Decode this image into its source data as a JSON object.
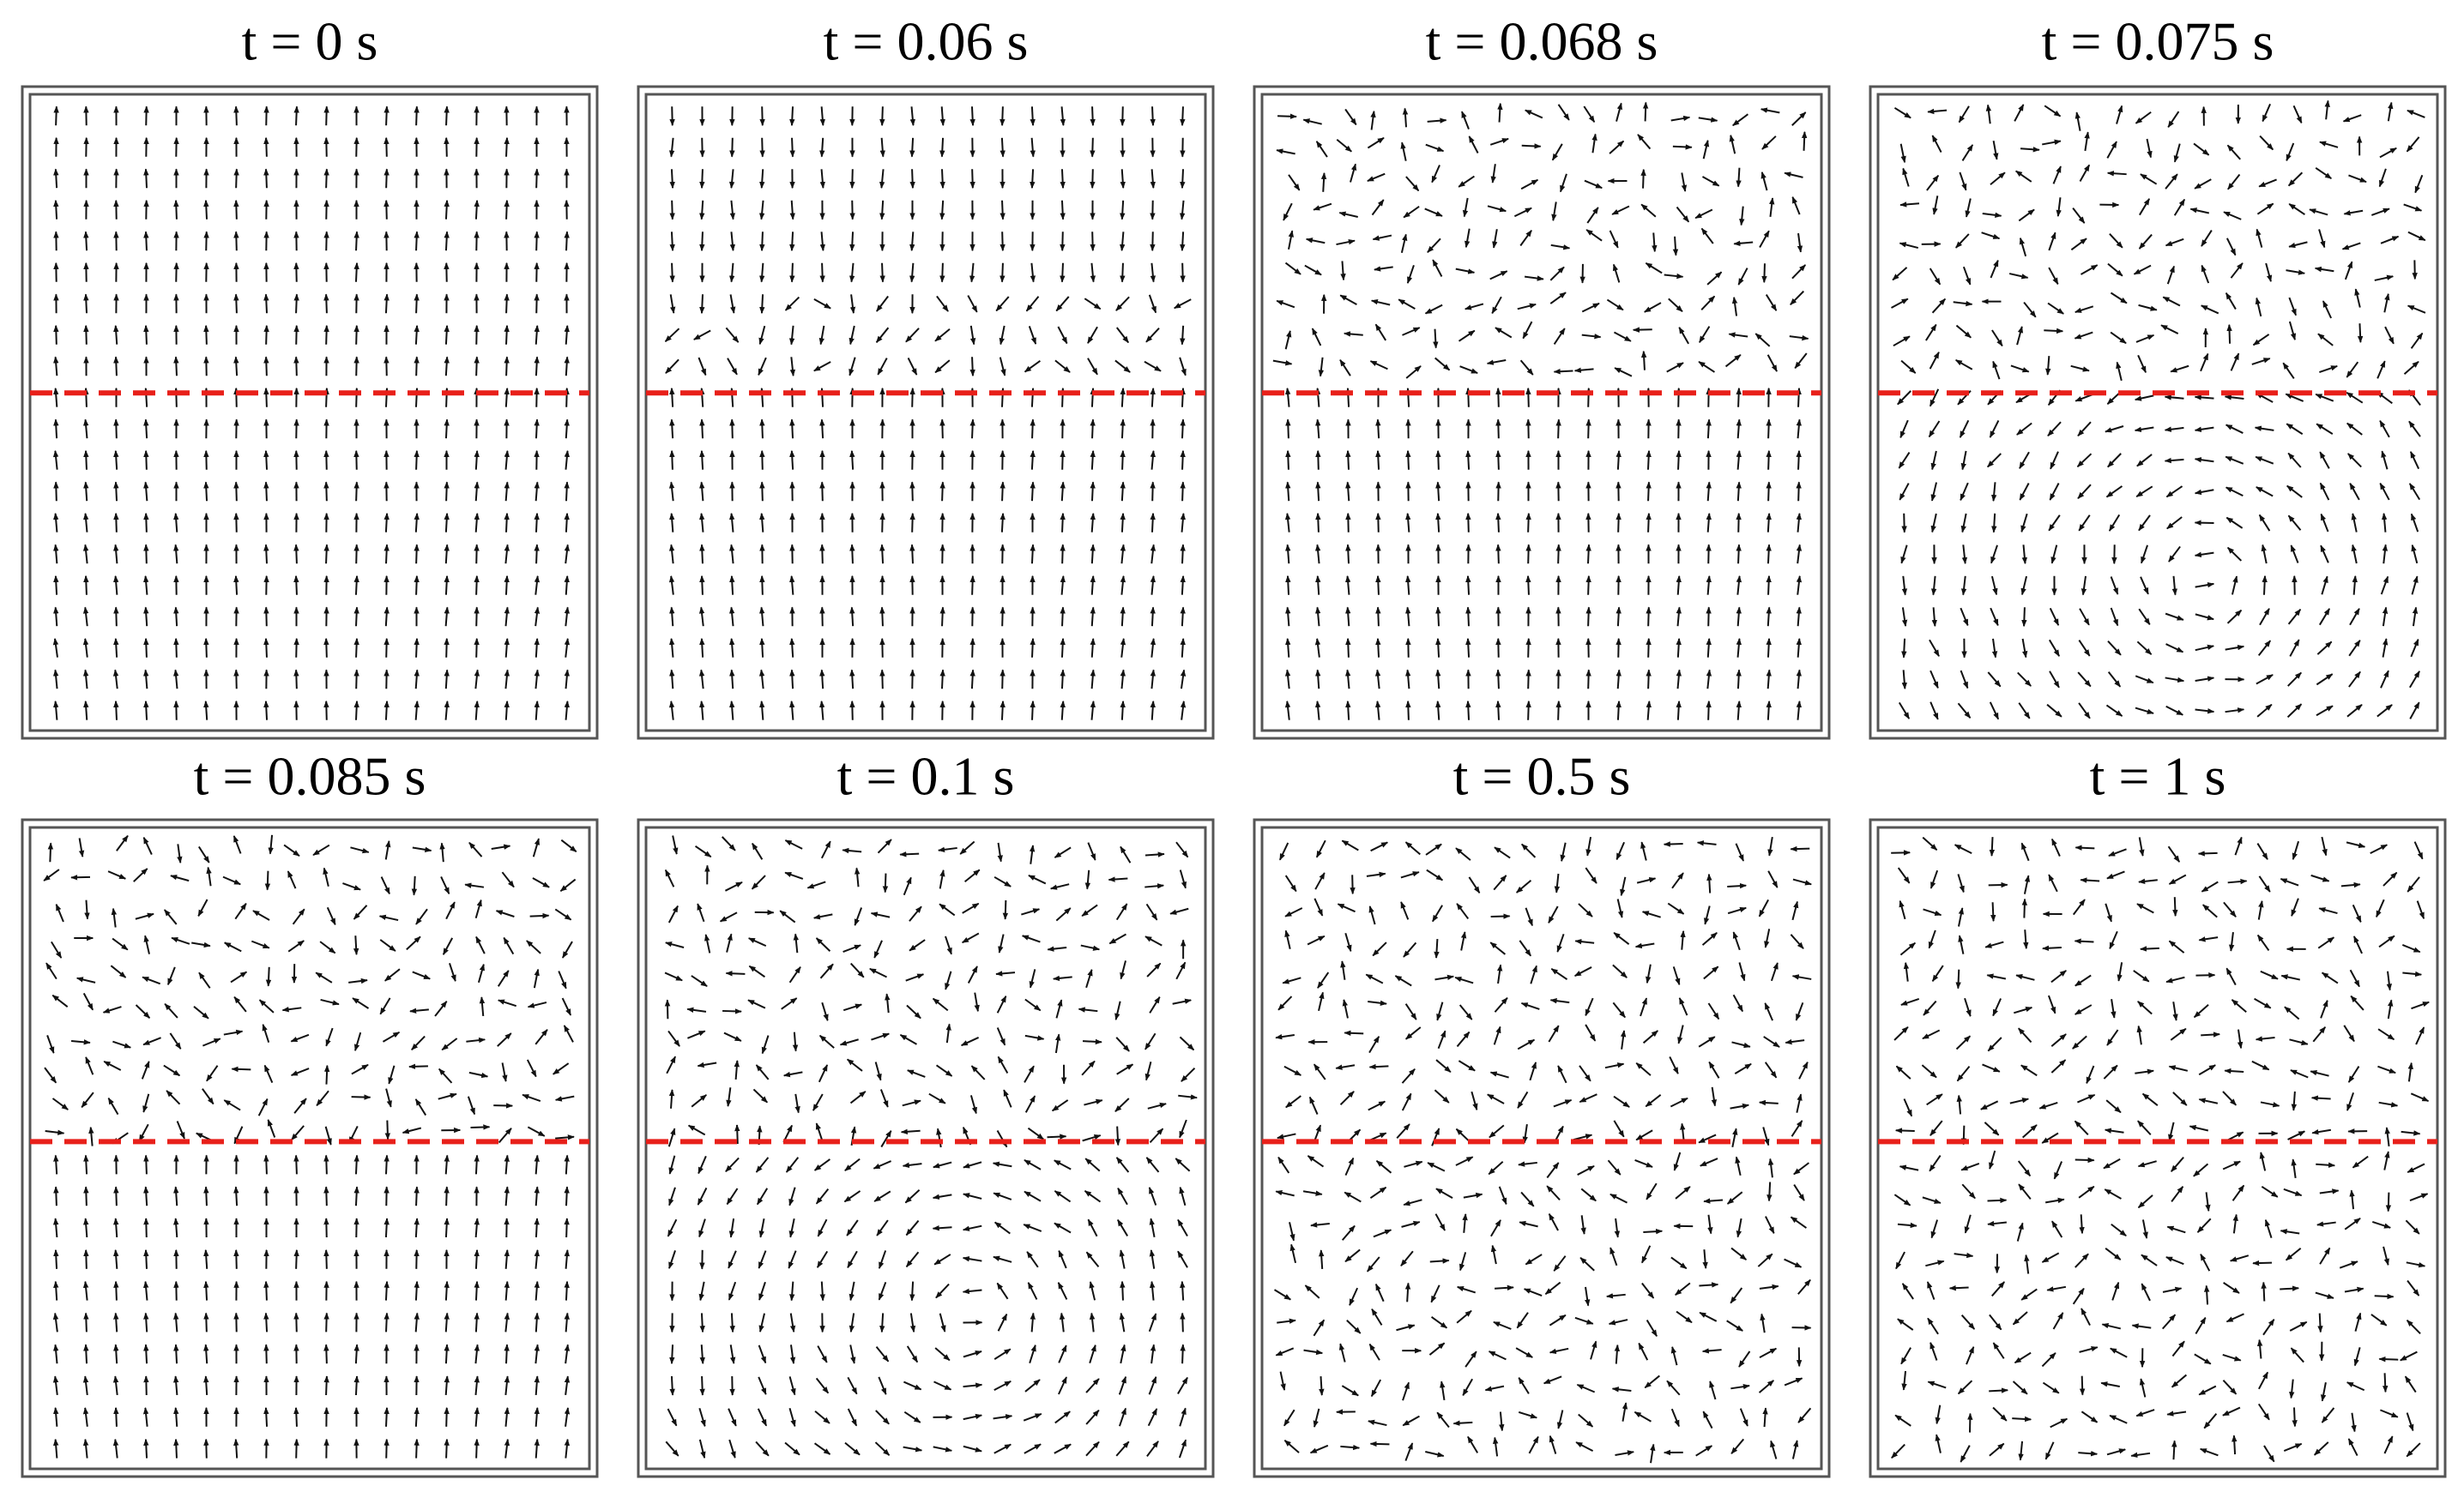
{
  "panels": [
    {
      "title": "t = 0 s"
    },
    {
      "title": "t = 0.06 s"
    },
    {
      "title": "t = 0.068 s"
    },
    {
      "title": "t = 0.075 s"
    },
    {
      "title": "t = 0.085 s"
    },
    {
      "title": "t = 0.1 s"
    },
    {
      "title": "t = 0.5 s"
    },
    {
      "title": "t = 1 s"
    }
  ]
}
